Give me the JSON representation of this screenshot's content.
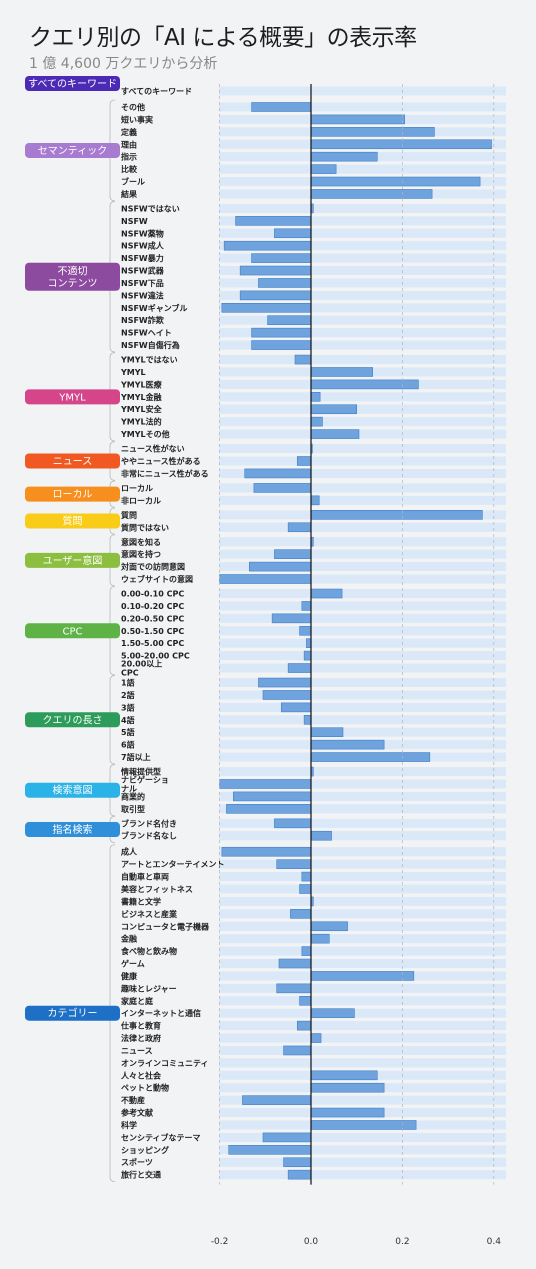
{
  "title": "クエリ別の「AI による概要」の表示率",
  "subtitle": "1 億 4,600 万クエリから分析",
  "chart_data": {
    "type": "bar",
    "orientation": "horizontal",
    "title": "クエリ別の「AI による概要」の表示率",
    "subtitle": "1 億 4,600 万クエリから分析",
    "xlim": [
      -0.2,
      0.42
    ],
    "xticks": [
      -0.2,
      0.0,
      0.2,
      0.4
    ],
    "xtick_labels": [
      "-0.2",
      "0.0",
      "0.2",
      "0.4"
    ],
    "groups": [
      {
        "label": "すべてのキーワード",
        "color": "#4b2bb5",
        "items": [
          {
            "label": "すべてのキーワード",
            "value": 0.0
          }
        ]
      },
      {
        "label": "セマンティック",
        "color": "#a77bd0",
        "items": [
          {
            "label": "その他",
            "value": -0.13
          },
          {
            "label": "短い事実",
            "value": 0.205
          },
          {
            "label": "定義",
            "value": 0.27
          },
          {
            "label": "理由",
            "value": 0.395
          },
          {
            "label": "指示",
            "value": 0.145
          },
          {
            "label": "比較",
            "value": 0.055
          },
          {
            "label": "ブール",
            "value": 0.37
          },
          {
            "label": "結果",
            "value": 0.265
          }
        ]
      },
      {
        "label": "不適切\nコンテンツ",
        "color": "#8c4b9e",
        "items": [
          {
            "label": "NSFWではない",
            "value": 0.005
          },
          {
            "label": "NSFW",
            "value": -0.165
          },
          {
            "label": "NSFW薬物",
            "value": -0.08
          },
          {
            "label": "NSFW成人",
            "value": -0.19
          },
          {
            "label": "NSFW暴力",
            "value": -0.13
          },
          {
            "label": "NSFW武器",
            "value": -0.155
          },
          {
            "label": "NSFW下品",
            "value": -0.115
          },
          {
            "label": "NSFW違法",
            "value": -0.155
          },
          {
            "label": "NSFWギャンブル",
            "value": -0.195
          },
          {
            "label": "NSFW詐欺",
            "value": -0.095
          },
          {
            "label": "NSFWヘイト",
            "value": -0.13
          },
          {
            "label": "NSFW自傷行為",
            "value": -0.13
          }
        ]
      },
      {
        "label": "YMYL",
        "color": "#d5458a",
        "items": [
          {
            "label": "YMYLではない",
            "value": -0.035
          },
          {
            "label": "YMYL",
            "value": 0.135
          },
          {
            "label": "YMYL医療",
            "value": 0.235
          },
          {
            "label": "YMYL金融",
            "value": 0.02
          },
          {
            "label": "YMYL安全",
            "value": 0.1
          },
          {
            "label": "YMYL法的",
            "value": 0.025
          },
          {
            "label": "YMYLその他",
            "value": 0.105
          }
        ]
      },
      {
        "label": "ニュース",
        "color": "#f05a22",
        "items": [
          {
            "label": "ニュース性がない",
            "value": 0.003
          },
          {
            "label": "ややニュース性がある",
            "value": -0.03
          },
          {
            "label": "非常にニュース性がある",
            "value": -0.145
          }
        ]
      },
      {
        "label": "ローカル",
        "color": "#f78f1e",
        "items": [
          {
            "label": "ローカル",
            "value": -0.125
          },
          {
            "label": "非ローカル",
            "value": 0.018
          }
        ]
      },
      {
        "label": "質問",
        "color": "#f9cc17",
        "items": [
          {
            "label": "質問",
            "value": 0.375
          },
          {
            "label": "質問ではない",
            "value": -0.05
          }
        ]
      },
      {
        "label": "ユーザー意図",
        "color": "#8cbf3f",
        "items": [
          {
            "label": "意図を知る",
            "value": 0.005
          },
          {
            "label": "意図を持つ",
            "value": -0.08
          },
          {
            "label": "対面での訪問意図",
            "value": -0.135
          },
          {
            "label": "ウェブサイトの意図",
            "value": -0.2
          }
        ]
      },
      {
        "label": "CPC",
        "color": "#5fb346",
        "items": [
          {
            "label": "0.00-0.10 CPC",
            "value": 0.068
          },
          {
            "label": "0.10-0.20 CPC",
            "value": -0.02
          },
          {
            "label": "0.20-0.50 CPC",
            "value": -0.085
          },
          {
            "label": "0.50-1.50 CPC",
            "value": -0.025
          },
          {
            "label": "1.50-5.00 CPC",
            "value": -0.01
          },
          {
            "label": "5.00-20.00 CPC",
            "value": -0.015
          },
          {
            "label": "20.00以上\nCPC",
            "value": -0.05
          }
        ]
      },
      {
        "label": "クエリの長さ",
        "color": "#2d9c5a",
        "items": [
          {
            "label": "1語",
            "value": -0.115
          },
          {
            "label": "2語",
            "value": -0.105
          },
          {
            "label": "3語",
            "value": -0.065
          },
          {
            "label": "4語",
            "value": -0.015
          },
          {
            "label": "5語",
            "value": 0.07
          },
          {
            "label": "6語",
            "value": 0.16
          },
          {
            "label": "7語以上",
            "value": 0.26
          }
        ]
      },
      {
        "label": "検索意図",
        "color": "#2bb2e6",
        "items": [
          {
            "label": "情報提供型",
            "value": 0.005
          },
          {
            "label": "ナビゲーショ\nナル",
            "value": -0.2
          },
          {
            "label": "商業的",
            "value": -0.17
          },
          {
            "label": "取引型",
            "value": -0.185
          }
        ]
      },
      {
        "label": "指名検索",
        "color": "#2f8fd8",
        "items": [
          {
            "label": "ブランド名付き",
            "value": -0.08
          },
          {
            "label": "ブランド名なし",
            "value": 0.045
          }
        ]
      },
      {
        "label": "カテゴリー",
        "color": "#1e6fc6",
        "items": [
          {
            "label": "成人",
            "value": -0.195
          },
          {
            "label": "アートとエンターテイメント",
            "value": -0.075
          },
          {
            "label": "自動車と車両",
            "value": -0.02
          },
          {
            "label": "美容とフィットネス",
            "value": -0.025
          },
          {
            "label": "書籍と文学",
            "value": 0.005
          },
          {
            "label": "ビジネスと産業",
            "value": -0.045
          },
          {
            "label": "コンピュータと電子機器",
            "value": 0.08
          },
          {
            "label": "金融",
            "value": 0.04
          },
          {
            "label": "食べ物と飲み物",
            "value": -0.02
          },
          {
            "label": "ゲーム",
            "value": -0.07
          },
          {
            "label": "健康",
            "value": 0.225
          },
          {
            "label": "趣味とレジャー",
            "value": -0.075
          },
          {
            "label": "家庭と庭",
            "value": -0.025
          },
          {
            "label": "インターネットと通信",
            "value": 0.095
          },
          {
            "label": "仕事と教育",
            "value": -0.03
          },
          {
            "label": "法律と政府",
            "value": 0.022
          },
          {
            "label": "ニュース",
            "value": -0.06
          },
          {
            "label": "オンラインコミュニティ",
            "value": 0.0
          },
          {
            "label": "人々と社会",
            "value": 0.145
          },
          {
            "label": "ペットと動物",
            "value": 0.16
          },
          {
            "label": "不動産",
            "value": -0.15
          },
          {
            "label": "参考文献",
            "value": 0.16
          },
          {
            "label": "科学",
            "value": 0.23
          },
          {
            "label": "センシティブなテーマ",
            "value": -0.105
          },
          {
            "label": "ショッピング",
            "value": -0.18
          },
          {
            "label": "スポーツ",
            "value": -0.06
          },
          {
            "label": "旅行と交通",
            "value": -0.05
          }
        ]
      }
    ]
  }
}
